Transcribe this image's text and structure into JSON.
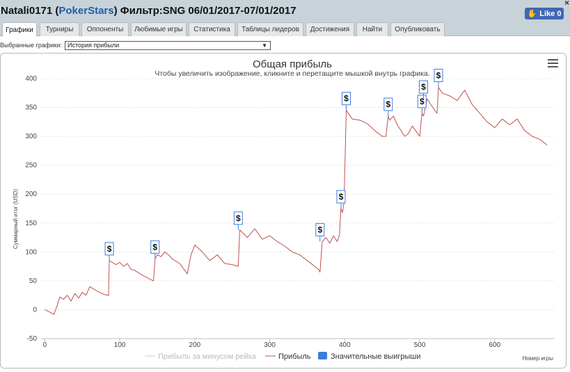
{
  "window": {
    "user": "Natali0171",
    "site": "PokerStars",
    "filter": "Фильтр:SNG 06/01/2017-07/01/2017",
    "close": "×",
    "like_label": "Like 0"
  },
  "tabs": [
    {
      "label": "Графики",
      "active": true
    },
    {
      "label": "Турниры"
    },
    {
      "label": "Оппоненты"
    },
    {
      "label": "Любимые игры"
    },
    {
      "label": "Статистика"
    },
    {
      "label": "Таблицы лидеров"
    },
    {
      "label": "Достижения"
    },
    {
      "label": "Найти"
    },
    {
      "label": "Опубликовать"
    }
  ],
  "selector": {
    "label": "Выбранные графики:",
    "value": "История прибыли",
    "arrow": "▼"
  },
  "chart_data": {
    "type": "line",
    "title": "Общая прибыль",
    "subtitle": "Чтобы увеличить изображение, кликните и перетащите мышкой внутрь графика.",
    "xlabel": "Номер игры",
    "ylabel": "Суммарный итог (USD)",
    "xlim": [
      -5,
      680
    ],
    "ylim": [
      -50,
      400
    ],
    "x_ticks": [
      0,
      100,
      200,
      300,
      400,
      500,
      600
    ],
    "y_ticks": [
      -50,
      0,
      50,
      100,
      150,
      200,
      250,
      300,
      350,
      400
    ],
    "grid": "horizontal dotted",
    "legend": "bottom-center",
    "series": [
      {
        "name": "Прибыль за минусом рейка",
        "color": "#cccccc",
        "hidden": true,
        "x": [],
        "y": []
      },
      {
        "name": "Прибыль",
        "color": "#c0504d",
        "x": [
          0,
          5,
          12,
          16,
          20,
          25,
          30,
          35,
          40,
          45,
          50,
          55,
          60,
          70,
          80,
          85,
          86,
          90,
          95,
          100,
          105,
          110,
          115,
          120,
          130,
          140,
          145,
          147,
          150,
          155,
          160,
          165,
          170,
          180,
          190,
          195,
          200,
          210,
          220,
          230,
          240,
          250,
          258,
          260,
          265,
          270,
          280,
          290,
          300,
          310,
          320,
          330,
          340,
          350,
          360,
          365,
          367,
          370,
          375,
          380,
          385,
          390,
          393,
          395,
          397,
          399,
          402,
          410,
          420,
          430,
          440,
          450,
          455,
          458,
          460,
          465,
          470,
          480,
          485,
          490,
          500,
          503,
          505,
          510,
          515,
          520,
          523,
          525,
          530,
          540,
          550,
          560,
          570,
          580,
          590,
          600,
          610,
          620,
          630,
          640,
          650,
          660,
          670
        ],
        "y": [
          0,
          -3,
          -8,
          5,
          22,
          18,
          25,
          15,
          28,
          20,
          30,
          25,
          40,
          32,
          26,
          25,
          85,
          82,
          78,
          82,
          75,
          80,
          70,
          68,
          60,
          53,
          50,
          88,
          95,
          92,
          100,
          95,
          88,
          80,
          62,
          95,
          112,
          100,
          85,
          95,
          80,
          78,
          75,
          138,
          132,
          125,
          140,
          122,
          128,
          118,
          110,
          100,
          95,
          85,
          75,
          70,
          65,
          118,
          125,
          115,
          128,
          118,
          130,
          175,
          168,
          185,
          345,
          330,
          328,
          322,
          310,
          300,
          300,
          335,
          328,
          335,
          320,
          300,
          305,
          318,
          300,
          340,
          335,
          365,
          355,
          345,
          340,
          385,
          375,
          370,
          362,
          380,
          355,
          340,
          325,
          315,
          330,
          320,
          330,
          310,
          300,
          295,
          285
        ]
      },
      {
        "name": "Значительные выигрыши",
        "color": "#3b7ddd",
        "type": "flags",
        "marker_label": "$",
        "x": [
          86,
          147,
          258,
          367,
          395,
          402,
          458,
          503,
          505,
          525
        ],
        "y": [
          85,
          88,
          138,
          118,
          175,
          345,
          335,
          340,
          365,
          385
        ]
      }
    ]
  }
}
